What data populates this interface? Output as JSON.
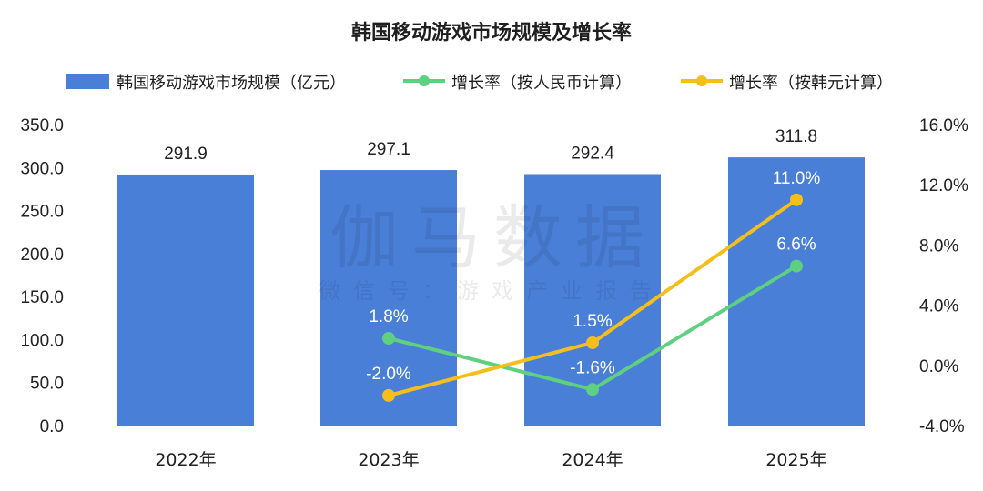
{
  "chart_data": {
    "type": "bar",
    "title": "韩国移动游戏市场规模及增长率",
    "categories": [
      "2022年",
      "2023年",
      "2024年",
      "2025年"
    ],
    "series": [
      {
        "name": "韩国移动游戏市场规模（亿元）",
        "kind": "bar",
        "axis": "left",
        "color": "#4a7fd8",
        "values": [
          291.9,
          297.1,
          292.4,
          311.8
        ],
        "labels": [
          "291.9",
          "297.1",
          "292.4",
          "311.8"
        ]
      },
      {
        "name": "增长率（按人民币计算）",
        "kind": "line",
        "axis": "right",
        "color": "#5fcf80",
        "values": [
          null,
          1.8,
          -1.6,
          6.6
        ],
        "labels": [
          "",
          "1.8%",
          "-1.6%",
          "6.6%"
        ]
      },
      {
        "name": "增长率（按韩元计算）",
        "kind": "line",
        "axis": "right",
        "color": "#f5bf1b",
        "values": [
          null,
          -2.0,
          1.5,
          11.0
        ],
        "labels": [
          "",
          "-2.0%",
          "1.5%",
          "11.0%"
        ]
      }
    ],
    "y_left": {
      "range": [
        0,
        350
      ],
      "ticks": [
        "0.0",
        "50.0",
        "100.0",
        "150.0",
        "200.0",
        "250.0",
        "300.0",
        "350.0"
      ]
    },
    "y_right": {
      "range": [
        -4,
        16
      ],
      "ticks": [
        "-4.0%",
        "0.0%",
        "4.0%",
        "8.0%",
        "12.0%",
        "16.0%"
      ]
    },
    "legend_position": "top",
    "grid": false
  },
  "watermark": {
    "main": "伽马数据",
    "sub": "微信号：游戏产业报告"
  }
}
